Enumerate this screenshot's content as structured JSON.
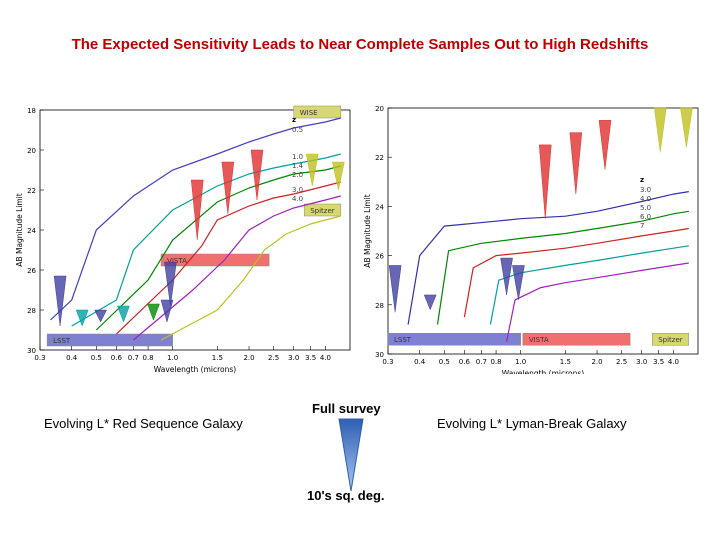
{
  "title": "The Expected Sensitivity Leads to Near Complete Samples Out to High Redshifts",
  "captions": {
    "left": "Evolving L* Red Sequence Galaxy",
    "right": "Evolving L* Lyman-Break Galaxy",
    "survey_top": "Full survey",
    "survey_bottom": "10's sq. deg."
  },
  "chart_data": [
    {
      "type": "line",
      "xlabel": "Wavelength (microns)",
      "ylabel": "AB Magnitude Limit",
      "x_scale": "log",
      "xlim": [
        0.3,
        5.0
      ],
      "ylim": [
        30,
        18
      ],
      "x_ticks": [
        0.3,
        0.4,
        0.5,
        0.6,
        0.7,
        0.8,
        1.0,
        1.5,
        2.0,
        2.5,
        3.0,
        3.5,
        4.0
      ],
      "y_ticks": [
        18,
        20,
        22,
        24,
        26,
        28,
        30
      ],
      "legend_title": "z",
      "series": [
        {
          "name": "0.5",
          "color": "#4040c0",
          "points": [
            [
              0.33,
              28.5
            ],
            [
              0.4,
              27.5
            ],
            [
              0.5,
              24.0
            ],
            [
              0.7,
              22.3
            ],
            [
              1.0,
              21.0
            ],
            [
              1.5,
              20.2
            ],
            [
              2.0,
              19.6
            ],
            [
              2.5,
              19.2
            ],
            [
              3.0,
              18.9
            ],
            [
              4.0,
              18.6
            ],
            [
              4.6,
              18.4
            ]
          ]
        },
        {
          "name": "1.0",
          "color": "#00a0a0",
          "points": [
            [
              0.4,
              28.8
            ],
            [
              0.6,
              27.5
            ],
            [
              0.7,
              25.0
            ],
            [
              1.0,
              23.0
            ],
            [
              1.5,
              21.8
            ],
            [
              2.0,
              21.2
            ],
            [
              2.5,
              20.9
            ],
            [
              3.0,
              20.7
            ],
            [
              4.0,
              20.4
            ],
            [
              4.6,
              20.2
            ]
          ]
        },
        {
          "name": "1.4",
          "color": "#008800",
          "points": [
            [
              0.5,
              29.0
            ],
            [
              0.8,
              26.5
            ],
            [
              1.0,
              24.5
            ],
            [
              1.5,
              22.6
            ],
            [
              2.0,
              21.9
            ],
            [
              2.5,
              21.5
            ],
            [
              3.0,
              21.2
            ],
            [
              4.0,
              21.0
            ],
            [
              4.6,
              20.8
            ]
          ]
        },
        {
          "name": "2.0",
          "color": "#d02020",
          "points": [
            [
              0.6,
              29.2
            ],
            [
              1.0,
              26.5
            ],
            [
              1.3,
              24.8
            ],
            [
              1.5,
              23.5
            ],
            [
              2.0,
              22.8
            ],
            [
              2.5,
              22.4
            ],
            [
              3.0,
              22.2
            ],
            [
              4.0,
              21.8
            ],
            [
              4.6,
              21.6
            ]
          ]
        },
        {
          "name": "3.0",
          "color": "#a020c0",
          "points": [
            [
              0.7,
              29.5
            ],
            [
              1.2,
              27.0
            ],
            [
              1.6,
              25.5
            ],
            [
              2.0,
              24.0
            ],
            [
              2.5,
              23.3
            ],
            [
              3.0,
              22.9
            ],
            [
              4.0,
              22.5
            ],
            [
              4.6,
              22.3
            ]
          ]
        },
        {
          "name": "4.0",
          "color": "#c0c020",
          "points": [
            [
              0.9,
              29.5
            ],
            [
              1.5,
              28.0
            ],
            [
              1.9,
              26.5
            ],
            [
              2.3,
              25.0
            ],
            [
              2.8,
              24.2
            ],
            [
              3.5,
              23.7
            ],
            [
              4.0,
              23.5
            ],
            [
              4.6,
              23.3
            ]
          ]
        }
      ],
      "surveys": [
        {
          "name": "WISE",
          "color": "#d8d870",
          "x0": 3.0,
          "x1": 4.6,
          "y": 18.1
        },
        {
          "name": "Spitzer",
          "color": "#d8d870",
          "x0": 3.3,
          "x1": 4.6,
          "y": 23.0
        },
        {
          "name": "VISTA",
          "color": "#f07070",
          "x0": 0.9,
          "x1": 2.4,
          "y": 25.5
        },
        {
          "name": "LSST",
          "color": "#8080d0",
          "x0": 0.32,
          "x1": 1.0,
          "y": 29.5
        }
      ],
      "markers": [
        {
          "color": "#e03030",
          "x": 1.25,
          "y0": 21.5,
          "y1": 24.5
        },
        {
          "color": "#e03030",
          "x": 1.65,
          "y0": 20.6,
          "y1": 23.2
        },
        {
          "color": "#e03030",
          "x": 2.15,
          "y0": 20.0,
          "y1": 22.5
        },
        {
          "color": "#c0c020",
          "x": 3.55,
          "y0": 20.2,
          "y1": 21.8
        },
        {
          "color": "#c0c020",
          "x": 4.5,
          "y0": 20.6,
          "y1": 22.0
        },
        {
          "color": "#4040a0",
          "x": 0.36,
          "y0": 26.3,
          "y1": 28.8
        },
        {
          "color": "#4040a0",
          "x": 0.52,
          "y0": 28.0,
          "y1": 28.6
        },
        {
          "color": "#4040a0",
          "x": 0.95,
          "y0": 27.5,
          "y1": 28.6
        },
        {
          "color": "#4040a0",
          "x": 0.98,
          "y0": 25.6,
          "y1": 27.8
        },
        {
          "color": "#00a0a0",
          "x": 0.44,
          "y0": 28.0,
          "y1": 28.8
        },
        {
          "color": "#00a0a0",
          "x": 0.64,
          "y0": 27.8,
          "y1": 28.6
        },
        {
          "color": "#008800",
          "x": 0.84,
          "y0": 27.7,
          "y1": 28.5
        }
      ]
    },
    {
      "type": "line",
      "xlabel": "Wavelength (microns)",
      "ylabel": "AB Magnitude Limit",
      "x_scale": "log",
      "xlim": [
        0.3,
        5.0
      ],
      "ylim": [
        30,
        20
      ],
      "x_ticks": [
        0.3,
        0.4,
        0.5,
        0.6,
        0.7,
        0.8,
        1.0,
        1.5,
        2.0,
        2.5,
        3.0,
        3.5,
        4.0
      ],
      "y_ticks": [
        20,
        22,
        24,
        26,
        28,
        30
      ],
      "legend_title": "z",
      "series": [
        {
          "name": "3.0",
          "color": "#3030b0",
          "points": [
            [
              0.36,
              28.8
            ],
            [
              0.4,
              26.0
            ],
            [
              0.5,
              24.8
            ],
            [
              0.8,
              24.6
            ],
            [
              1.0,
              24.5
            ],
            [
              1.5,
              24.4
            ],
            [
              2.0,
              24.2
            ],
            [
              3.0,
              23.8
            ],
            [
              4.0,
              23.5
            ],
            [
              4.6,
              23.4
            ]
          ]
        },
        {
          "name": "4.0",
          "color": "#008800",
          "points": [
            [
              0.47,
              28.8
            ],
            [
              0.52,
              25.8
            ],
            [
              0.7,
              25.5
            ],
            [
              1.0,
              25.3
            ],
            [
              1.5,
              25.1
            ],
            [
              2.0,
              24.9
            ],
            [
              3.0,
              24.6
            ],
            [
              4.0,
              24.3
            ],
            [
              4.6,
              24.2
            ]
          ]
        },
        {
          "name": "5.0",
          "color": "#d02020",
          "points": [
            [
              0.6,
              28.5
            ],
            [
              0.65,
              26.5
            ],
            [
              0.8,
              26.0
            ],
            [
              1.0,
              25.9
            ],
            [
              1.5,
              25.7
            ],
            [
              2.0,
              25.5
            ],
            [
              3.0,
              25.2
            ],
            [
              4.0,
              25.0
            ],
            [
              4.6,
              24.9
            ]
          ]
        },
        {
          "name": "6.0",
          "color": "#00a0a0",
          "points": [
            [
              0.76,
              28.8
            ],
            [
              0.82,
              27.0
            ],
            [
              1.0,
              26.7
            ],
            [
              1.5,
              26.4
            ],
            [
              2.0,
              26.2
            ],
            [
              3.0,
              25.9
            ],
            [
              4.0,
              25.7
            ],
            [
              4.6,
              25.6
            ]
          ]
        },
        {
          "name": "7",
          "color": "#a020c0",
          "points": [
            [
              0.88,
              29.5
            ],
            [
              0.95,
              27.8
            ],
            [
              1.2,
              27.3
            ],
            [
              1.5,
              27.1
            ],
            [
              2.0,
              26.9
            ],
            [
              3.0,
              26.6
            ],
            [
              4.0,
              26.4
            ],
            [
              4.6,
              26.3
            ]
          ]
        }
      ],
      "surveys": [
        {
          "name": "LSST",
          "color": "#8080d0",
          "x0": 0.3,
          "x1": 1.0,
          "y": 29.4
        },
        {
          "name": "VISTA",
          "color": "#f07070",
          "x0": 1.02,
          "x1": 2.7,
          "y": 29.4
        },
        {
          "name": "Spitzer",
          "color": "#d8d870",
          "x0": 3.3,
          "x1": 4.6,
          "y": 29.4
        }
      ],
      "markers": [
        {
          "color": "#e03030",
          "x": 1.25,
          "y0": 21.5,
          "y1": 24.5
        },
        {
          "color": "#e03030",
          "x": 1.65,
          "y0": 21.0,
          "y1": 23.5
        },
        {
          "color": "#e03030",
          "x": 2.15,
          "y0": 20.5,
          "y1": 22.5
        },
        {
          "color": "#c0c020",
          "x": 3.55,
          "y0": 20.0,
          "y1": 21.8
        },
        {
          "color": "#c0c020",
          "x": 4.5,
          "y0": 20.0,
          "y1": 21.6
        },
        {
          "color": "#4040a0",
          "x": 0.32,
          "y0": 26.4,
          "y1": 28.3
        },
        {
          "color": "#4040a0",
          "x": 0.44,
          "y0": 27.6,
          "y1": 28.2
        },
        {
          "color": "#4040a0",
          "x": 0.88,
          "y0": 26.1,
          "y1": 27.6
        },
        {
          "color": "#4040a0",
          "x": 0.98,
          "y0": 26.4,
          "y1": 27.8
        }
      ]
    }
  ]
}
